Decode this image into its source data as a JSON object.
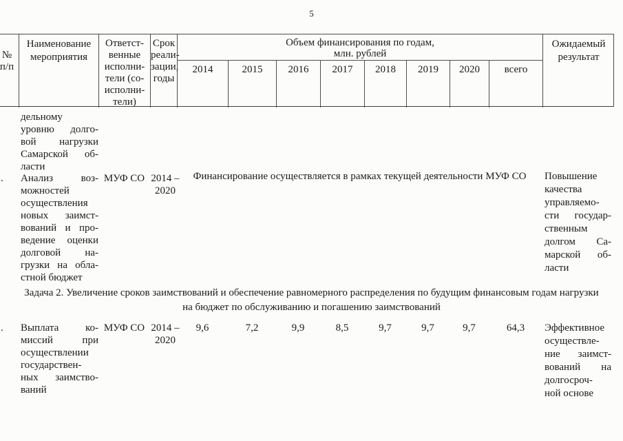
{
  "page_number": "5",
  "colors": {
    "ink": "#1a1a1a",
    "border": "#4c4c4c",
    "paper": "#fcfcfb"
  },
  "header": {
    "num": "№\nп/п",
    "name": "Наименование\nмероприятия",
    "executors": "Ответст-\nвенные\nисполни-\nтели (со-\nисполни-\nтели)",
    "term": "Срок\nреали-\nзации,\nгоды",
    "funding": "Объем финансирования по годам,\nмлн. рублей",
    "years": [
      "2014",
      "2015",
      "2016",
      "2017",
      "2018",
      "2019",
      "2020",
      "всего"
    ],
    "result": "Ожидаемый\nрезультат"
  },
  "rows": [
    {
      "name_lines": [
        "дельному",
        "уровню долго-",
        "вой нагрузки",
        "Самарской об-",
        "ласти"
      ]
    },
    {
      "num_marker": ".",
      "name_lines": [
        "Анализ воз-",
        "можностей",
        "осуществления",
        "новых заимст-",
        "вований и про-",
        "ведение оценки",
        "долговой на-",
        "грузки на обла-",
        "стной бюджет"
      ],
      "executor": "МУФ СО",
      "term": "2014 –\n2020",
      "funding_note": "Финансирование осуществляется в рамках текущей деятельности МУФ СО",
      "result_lines": [
        "Повышение",
        "качества",
        "управляемо-",
        "сти государ-",
        "ственным",
        "долгом Са-",
        "марской об-",
        "ласти"
      ]
    },
    {
      "num_marker": ".",
      "name_lines": [
        "Выплата ко-",
        "миссий при",
        "осуществлении",
        "государствен-",
        "ных заимство-",
        "ваний"
      ],
      "executor": "МУФ СО",
      "term": "2014 –\n2020",
      "values": [
        "9,6",
        "7,2",
        "9,9",
        "8,5",
        "9,7",
        "9,7",
        "9,7",
        "64,3"
      ],
      "result_lines": [
        "Эффективное",
        "осуществле-",
        "ние заимст-",
        "вований на",
        "долгосроч-",
        "ной основе"
      ]
    }
  ],
  "section_heading": "Задача 2. Увеличение сроков заимствований и обеспечение равномерного распределения по будущим финансовым годам нагрузки\nна бюджет по обслуживанию и погашению заимствований"
}
